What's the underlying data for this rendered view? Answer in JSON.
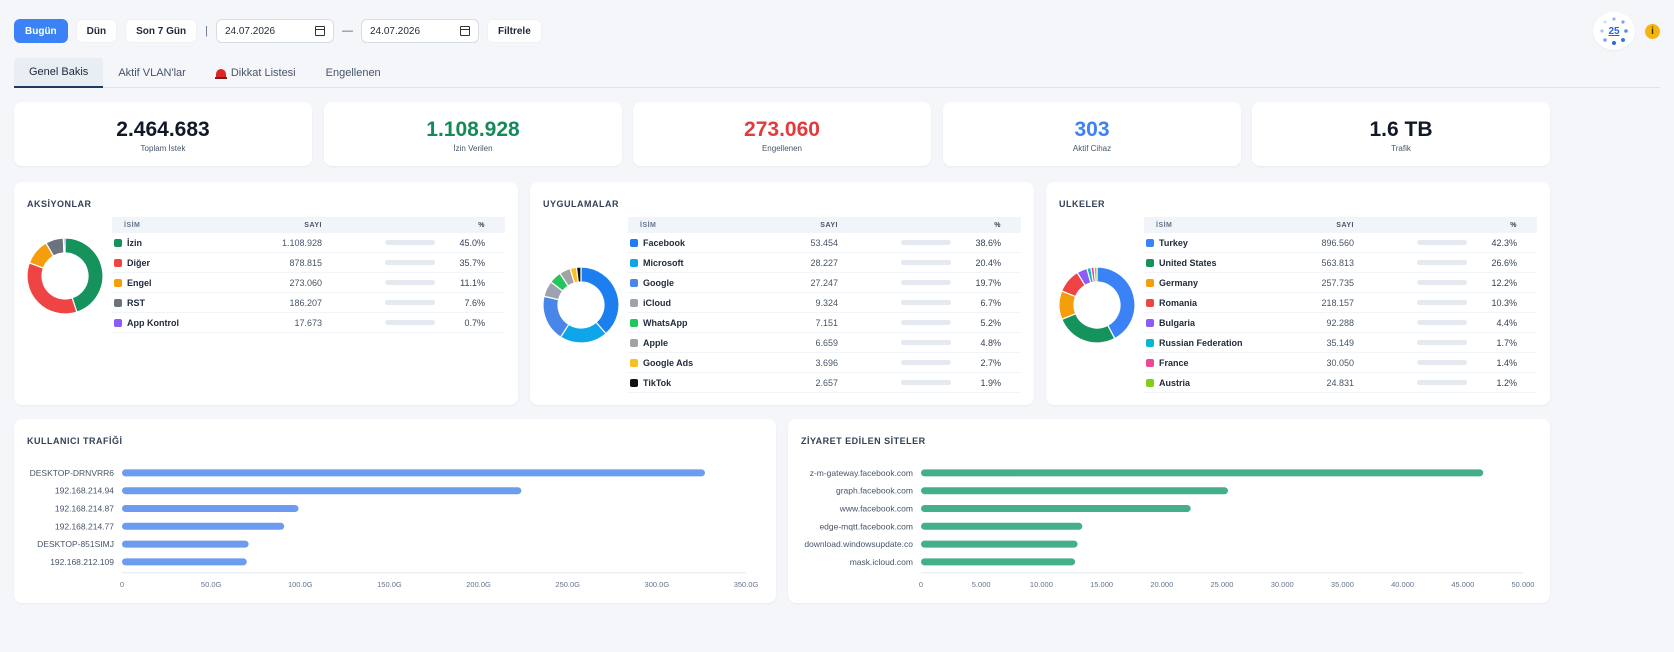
{
  "toolbar": {
    "today": "Bugün",
    "yesterday": "Dün",
    "last7": "Son 7 Gün",
    "separator": "|",
    "date_from": "24.07.2026",
    "date_dash": "—",
    "date_to": "24.07.2026",
    "filter": "Filtrele"
  },
  "top_right": {
    "refresh_count": "25",
    "info": "i"
  },
  "tabs": [
    "Genel Bakis",
    "Aktif VLAN'lar",
    "Dikkat Listesi",
    "Engellenen"
  ],
  "stats": [
    {
      "value": "2.464.683",
      "label": "Toplam İstek",
      "color": "#111827"
    },
    {
      "value": "1.108.928",
      "label": "İzin Verilen",
      "color": "#16895a"
    },
    {
      "value": "273.060",
      "label": "Engellenen",
      "color": "#e23b3b"
    },
    {
      "value": "303",
      "label": "Aktif Cihaz",
      "color": "#3b82f6"
    },
    {
      "value": "1.6 TB",
      "label": "Trafik",
      "color": "#111827"
    }
  ],
  "table_headers": {
    "name": "İSİM",
    "count": "SAYI",
    "pct": "%"
  },
  "panels": [
    {
      "title": "AKSİYONLAR",
      "rows": [
        {
          "name": "İzin",
          "count": "1.108.928",
          "pct": "45.0%",
          "value": 45.0,
          "color": "#16935d"
        },
        {
          "name": "Diğer",
          "count": "878.815",
          "pct": "35.7%",
          "value": 35.7,
          "color": "#ef4444"
        },
        {
          "name": "Engel",
          "count": "273.060",
          "pct": "11.1%",
          "value": 11.1,
          "color": "#f59e0b"
        },
        {
          "name": "RST",
          "count": "186.207",
          "pct": "7.6%",
          "value": 7.6,
          "color": "#6b7280"
        },
        {
          "name": "App Kontrol",
          "count": "17.673",
          "pct": "0.7%",
          "value": 0.7,
          "color": "#8b5cf6"
        }
      ]
    },
    {
      "title": "UYGULAMALAR",
      "rows": [
        {
          "name": "Facebook",
          "count": "53.454",
          "pct": "38.6%",
          "value": 38.6,
          "color": "#1d7ef0"
        },
        {
          "name": "Microsoft",
          "count": "28.227",
          "pct": "20.4%",
          "value": 20.4,
          "color": "#0ea5e9"
        },
        {
          "name": "Google",
          "count": "27.247",
          "pct": "19.7%",
          "value": 19.7,
          "color": "#4a86e8"
        },
        {
          "name": "iCloud",
          "count": "9.324",
          "pct": "6.7%",
          "value": 6.7,
          "color": "#9ca3af"
        },
        {
          "name": "WhatsApp",
          "count": "7.151",
          "pct": "5.2%",
          "value": 5.2,
          "color": "#22c55e"
        },
        {
          "name": "Apple",
          "count": "6.659",
          "pct": "4.8%",
          "value": 4.8,
          "color": "#a3a3a3"
        },
        {
          "name": "Google Ads",
          "count": "3.696",
          "pct": "2.7%",
          "value": 2.7,
          "color": "#fbbf24"
        },
        {
          "name": "TikTok",
          "count": "2.657",
          "pct": "1.9%",
          "value": 1.9,
          "color": "#111111"
        }
      ]
    },
    {
      "title": "ULKELER",
      "rows": [
        {
          "name": "Turkey",
          "count": "896.560",
          "pct": "42.3%",
          "value": 42.3,
          "color": "#3b82f6"
        },
        {
          "name": "United States",
          "count": "563.813",
          "pct": "26.6%",
          "value": 26.6,
          "color": "#16935d"
        },
        {
          "name": "Germany",
          "count": "257.735",
          "pct": "12.2%",
          "value": 12.2,
          "color": "#f59e0b"
        },
        {
          "name": "Romania",
          "count": "218.157",
          "pct": "10.3%",
          "value": 10.3,
          "color": "#ef4444"
        },
        {
          "name": "Bulgaria",
          "count": "92.288",
          "pct": "4.4%",
          "value": 4.4,
          "color": "#8b5cf6"
        },
        {
          "name": "Russian Federation",
          "count": "35.149",
          "pct": "1.7%",
          "value": 1.7,
          "color": "#06b6d4"
        },
        {
          "name": "France",
          "count": "30.050",
          "pct": "1.4%",
          "value": 1.4,
          "color": "#ec4899"
        },
        {
          "name": "Austria",
          "count": "24.831",
          "pct": "1.2%",
          "value": 1.2,
          "color": "#84cc16"
        }
      ]
    }
  ],
  "chart_data": [
    {
      "type": "bar",
      "orientation": "horizontal",
      "title": "KULLANICI TRAFİĞİ",
      "categories": [
        "DESKTOP-DRNVRR6",
        "192.168.214.94",
        "192.168.214.87",
        "192.168.214.77",
        "DESKTOP-851SIMJ",
        "192.168.212.109"
      ],
      "values": [
        327,
        224,
        99,
        91,
        71,
        70
      ],
      "unit": "G",
      "xlim": [
        0,
        350
      ],
      "ticks": [
        "0",
        "50.0G",
        "100.0G",
        "150.0G",
        "200.0G",
        "250.0G",
        "300.0G",
        "350.0G"
      ],
      "color": "#6b9cf0"
    },
    {
      "type": "bar",
      "orientation": "horizontal",
      "title": "ZİYARET EDİLEN SİTELER",
      "categories": [
        "z-m-gateway.facebook.com",
        "graph.facebook.com",
        "www.facebook.com",
        "edge-mqtt.facebook.com",
        "download.windowsupdate.co",
        "mask.icloud.com"
      ],
      "values": [
        46700,
        25500,
        22400,
        13400,
        13000,
        12800
      ],
      "xlim": [
        0,
        50000
      ],
      "ticks": [
        "0",
        "5.000",
        "10.000",
        "15.000",
        "20.000",
        "25.000",
        "30.000",
        "35.000",
        "40.000",
        "45.000",
        "50.000"
      ],
      "color": "#44b08a"
    }
  ]
}
